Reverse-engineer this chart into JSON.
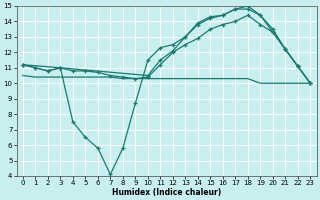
{
  "xlabel": "Humidex (Indice chaleur)",
  "bg_color": "#c8eef0",
  "grid_color": "#ffffff",
  "line_color": "#1a7a6e",
  "xlim": [
    -0.5,
    23.5
  ],
  "ylim": [
    4,
    15
  ],
  "xticks": [
    0,
    1,
    2,
    3,
    4,
    5,
    6,
    7,
    8,
    9,
    10,
    11,
    12,
    13,
    14,
    15,
    16,
    17,
    18,
    19,
    20,
    21,
    22,
    23
  ],
  "yticks": [
    4,
    5,
    6,
    7,
    8,
    9,
    10,
    11,
    12,
    13,
    14,
    15
  ],
  "line_flat_x": [
    0,
    1,
    2,
    3,
    4,
    5,
    6,
    7,
    8,
    9,
    10,
    11,
    12,
    13,
    14,
    15,
    16,
    17,
    18,
    19,
    20,
    21,
    22,
    23
  ],
  "line_flat_y": [
    10.5,
    10.4,
    10.4,
    10.4,
    10.4,
    10.4,
    10.4,
    10.4,
    10.3,
    10.3,
    10.3,
    10.3,
    10.3,
    10.3,
    10.3,
    10.3,
    10.3,
    10.3,
    10.3,
    10.0,
    10.0,
    10.0,
    10.0,
    10.0
  ],
  "line_mid_x": [
    0,
    1,
    2,
    3,
    4,
    5,
    6,
    7,
    8,
    9,
    10,
    11,
    12,
    13,
    14,
    15,
    16,
    17,
    18,
    19,
    20,
    21,
    22,
    23
  ],
  "line_mid_y": [
    11.2,
    11.0,
    10.8,
    11.0,
    10.8,
    10.8,
    10.7,
    10.5,
    10.4,
    10.3,
    10.4,
    11.2,
    12.0,
    12.5,
    12.9,
    13.5,
    13.8,
    14.0,
    14.4,
    13.8,
    13.3,
    12.2,
    11.1,
    10.0
  ],
  "line_dip_x": [
    0,
    1,
    2,
    3,
    4,
    5,
    6,
    7,
    8,
    9,
    10,
    11,
    12,
    13,
    14,
    15,
    16,
    17,
    18,
    19,
    20,
    21,
    22,
    23
  ],
  "line_dip_y": [
    11.2,
    11.0,
    10.8,
    11.0,
    7.5,
    6.5,
    5.8,
    4.1,
    5.8,
    8.7,
    11.5,
    12.3,
    12.5,
    13.0,
    13.9,
    14.3,
    14.4,
    14.8,
    15.0,
    14.4,
    13.5,
    12.2,
    11.1,
    10.0
  ],
  "line_top_x": [
    0,
    3,
    10,
    11,
    12,
    13,
    14,
    15,
    16,
    17,
    18,
    19,
    20,
    21,
    22,
    23
  ],
  "line_top_y": [
    11.2,
    11.0,
    10.5,
    11.5,
    12.1,
    13.0,
    13.8,
    14.2,
    14.4,
    14.8,
    14.8,
    14.4,
    13.3,
    12.2,
    11.1,
    10.0
  ]
}
